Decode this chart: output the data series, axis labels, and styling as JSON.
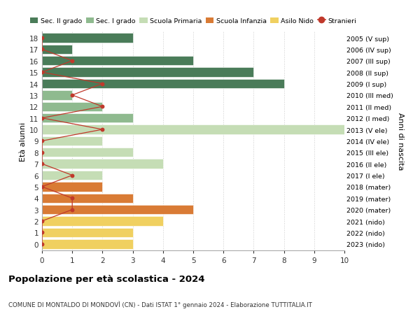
{
  "ages": [
    18,
    17,
    16,
    15,
    14,
    13,
    12,
    11,
    10,
    9,
    8,
    7,
    6,
    5,
    4,
    3,
    2,
    1,
    0
  ],
  "years": [
    "2005 (V sup)",
    "2006 (IV sup)",
    "2007 (III sup)",
    "2008 (II sup)",
    "2009 (I sup)",
    "2010 (III med)",
    "2011 (II med)",
    "2012 (I med)",
    "2013 (V ele)",
    "2014 (IV ele)",
    "2015 (III ele)",
    "2016 (II ele)",
    "2017 (I ele)",
    "2018 (mater)",
    "2019 (mater)",
    "2020 (mater)",
    "2021 (nido)",
    "2022 (nido)",
    "2023 (nido)"
  ],
  "bar_values": [
    3,
    1,
    5,
    7,
    8,
    1,
    2,
    3,
    10,
    2,
    3,
    4,
    2,
    2,
    3,
    5,
    4,
    3,
    3
  ],
  "bar_colors": [
    "#4a7c59",
    "#4a7c59",
    "#4a7c59",
    "#4a7c59",
    "#4a7c59",
    "#8fba8f",
    "#8fba8f",
    "#8fba8f",
    "#c5ddb5",
    "#c5ddb5",
    "#c5ddb5",
    "#c5ddb5",
    "#c5ddb5",
    "#d97b35",
    "#d97b35",
    "#d97b35",
    "#f0d060",
    "#f0d060",
    "#f0d060"
  ],
  "stranieri_values": [
    0,
    0,
    1,
    0,
    2,
    1,
    2,
    0,
    2,
    0,
    0,
    0,
    1,
    0,
    1,
    1,
    0,
    0,
    0
  ],
  "stranieri_color": "#c0392b",
  "ylabel_left": "Età alunni",
  "ylabel_right": "Anni di nascita",
  "xlim": [
    0,
    10
  ],
  "xticks": [
    0,
    1,
    2,
    3,
    4,
    5,
    6,
    7,
    8,
    9,
    10
  ],
  "title": "Popolazione per età scolastica - 2024",
  "subtitle": "COMUNE DI MONTALDO DI MONDOVÌ (CN) - Dati ISTAT 1° gennaio 2024 - Elaborazione TUTTITALIA.IT",
  "legend_items": [
    {
      "label": "Sec. II grado",
      "color": "#4a7c59"
    },
    {
      "label": "Sec. I grado",
      "color": "#8fba8f"
    },
    {
      "label": "Scuola Primaria",
      "color": "#c5ddb5"
    },
    {
      "label": "Scuola Infanzia",
      "color": "#d97b35"
    },
    {
      "label": "Asilo Nido",
      "color": "#f0d060"
    },
    {
      "label": "Stranieri",
      "color": "#c0392b"
    }
  ],
  "bg_color": "#ffffff",
  "grid_color": "#cccccc"
}
